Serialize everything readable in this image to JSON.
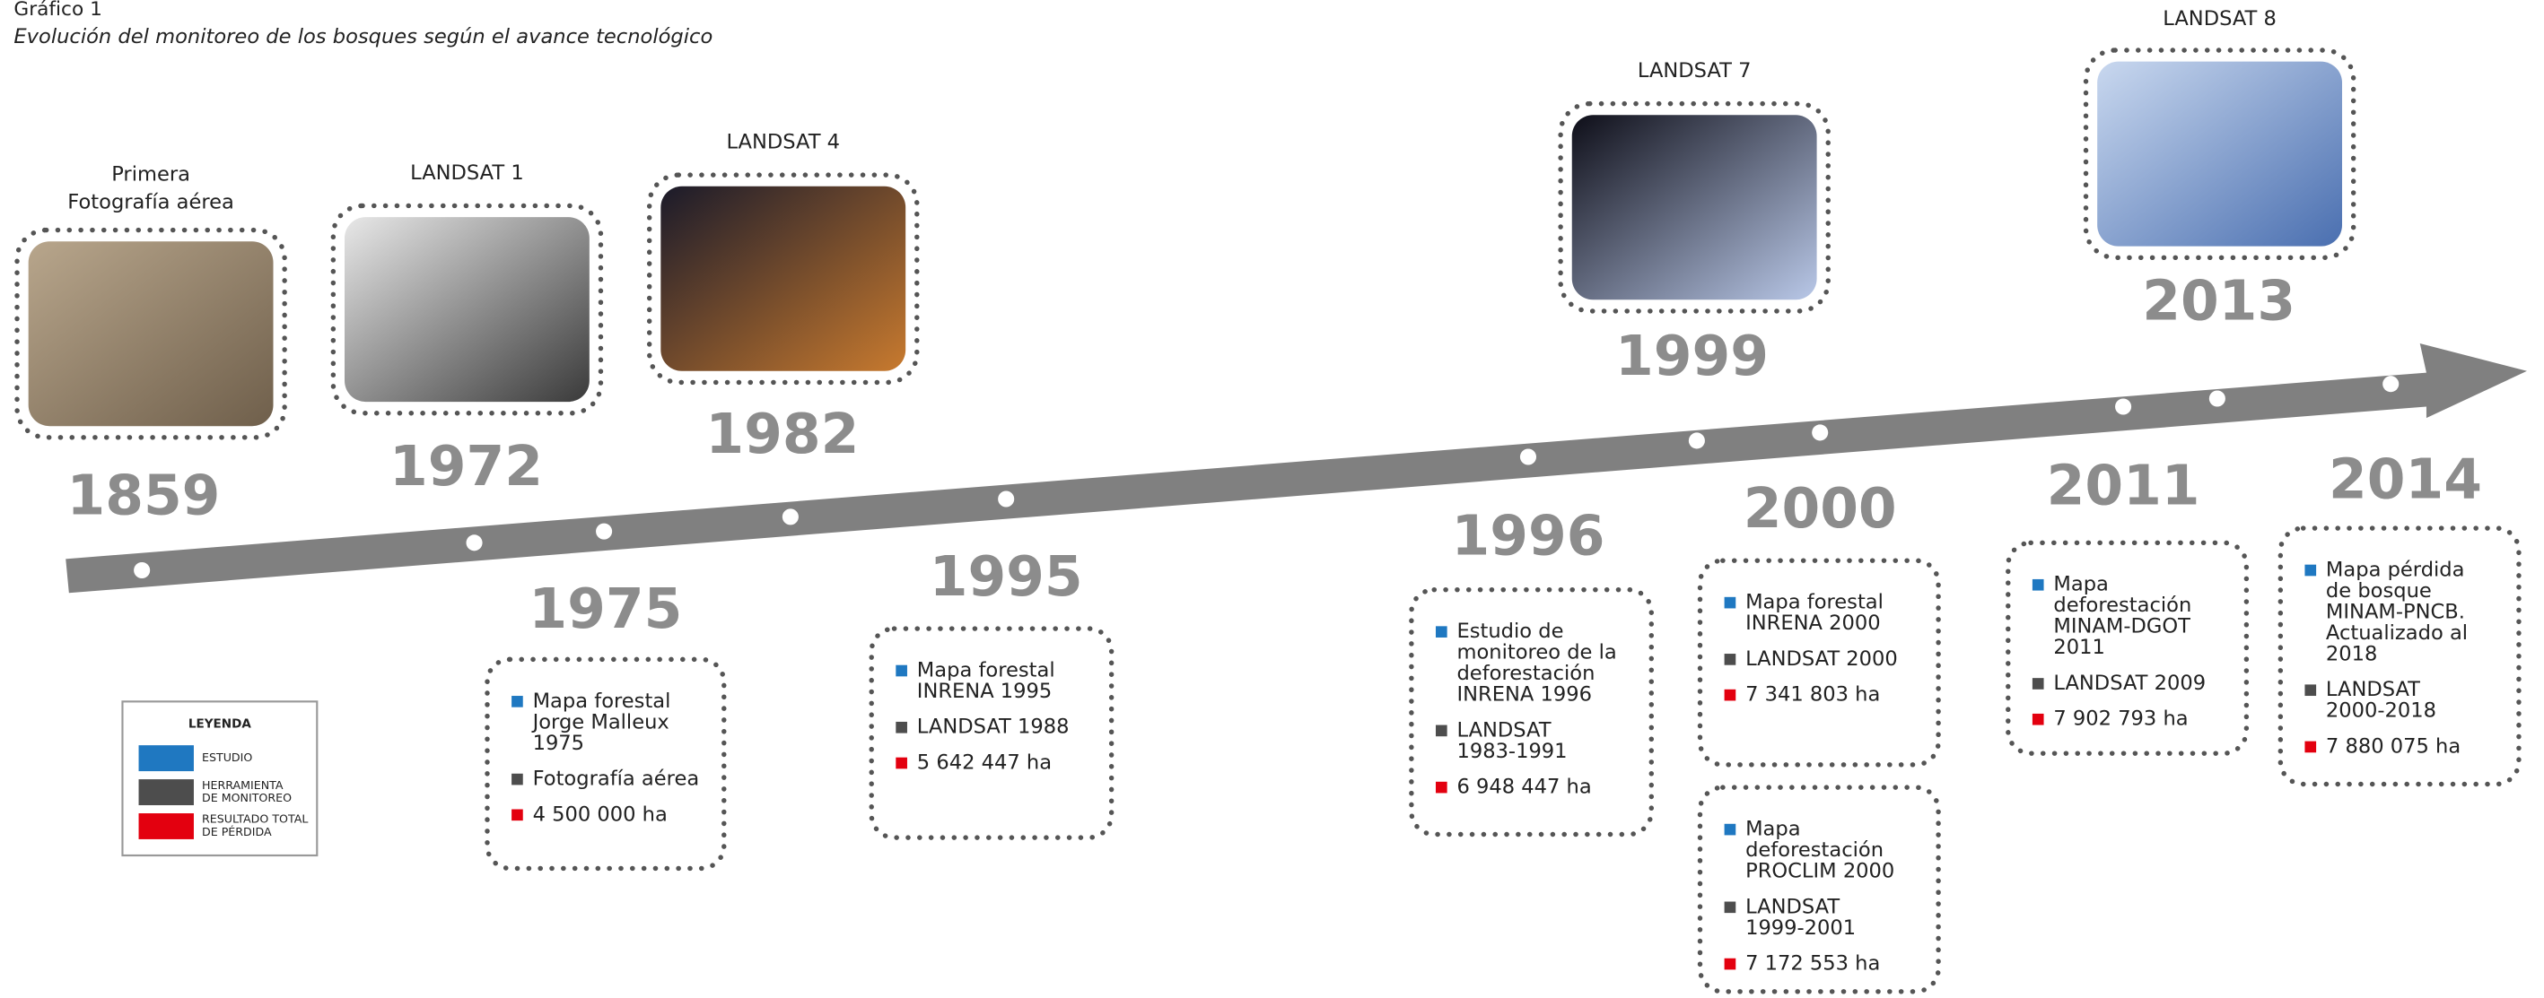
{
  "header": {
    "label": "Gráfico 1",
    "title": "Evolución del monitoreo de los bosques según el avance tecnológico"
  },
  "top_events": [
    {
      "year": "1859",
      "label_lines": [
        "Primera",
        "Fotografía aérea"
      ]
    },
    {
      "year": "1972",
      "label_lines": [
        "LANDSAT 1"
      ]
    },
    {
      "year": "1982",
      "label_lines": [
        "LANDSAT 4"
      ]
    },
    {
      "year": "1999",
      "label_lines": [
        "LANDSAT 7"
      ]
    },
    {
      "year": "2013",
      "label_lines": [
        "LANDSAT 8"
      ]
    }
  ],
  "bottom_events": [
    {
      "year": "1975",
      "boxes": [
        {
          "study_lines": [
            "Mapa forestal",
            "Jorge Malleux",
            "1975"
          ],
          "tool_lines": [
            "Fotografía aérea"
          ],
          "result": "4 500 000 ha"
        }
      ]
    },
    {
      "year": "1995",
      "boxes": [
        {
          "study_lines": [
            "Mapa forestal",
            "INRENA 1995"
          ],
          "tool_lines": [
            "LANDSAT 1988"
          ],
          "result": "5 642 447 ha"
        }
      ]
    },
    {
      "year": "1996",
      "boxes": [
        {
          "study_lines": [
            "Estudio de",
            "monitoreo de la",
            "deforestación",
            "INRENA 1996"
          ],
          "tool_lines": [
            "LANDSAT",
            "1983-1991"
          ],
          "result": "6 948 447 ha"
        }
      ]
    },
    {
      "year": "2000",
      "boxes": [
        {
          "study_lines": [
            "Mapa forestal",
            "INRENA 2000"
          ],
          "tool_lines": [
            "LANDSAT 2000"
          ],
          "result": "7 341 803 ha"
        },
        {
          "study_lines": [
            "Mapa",
            "deforestación",
            "PROCLIM 2000"
          ],
          "tool_lines": [
            "LANDSAT",
            "1999-2001"
          ],
          "result": "7 172 553 ha"
        }
      ]
    },
    {
      "year": "2011",
      "boxes": [
        {
          "study_lines": [
            "Mapa",
            "deforestación",
            "MINAM-DGOT",
            "2011"
          ],
          "tool_lines": [
            "LANDSAT 2009"
          ],
          "result": "7 902 793 ha"
        }
      ]
    },
    {
      "year": "2014",
      "boxes": [
        {
          "study_lines": [
            "Mapa pérdida",
            "de bosque",
            "MINAM-PNCB.",
            "Actualizado al",
            "2018"
          ],
          "tool_lines": [
            "LANDSAT",
            "2000-2018"
          ],
          "result": "7 880 075 ha"
        }
      ]
    }
  ],
  "legend": {
    "title": "LEYENDA",
    "items": [
      {
        "lines": [
          "ESTUDIO"
        ],
        "color": "#1f78c1"
      },
      {
        "lines": [
          "HERRAMIENTA",
          "DE MONITOREO"
        ],
        "color": "#4d4d4d"
      },
      {
        "lines": [
          "RESULTADO TOTAL",
          "DE PÉRDIDA"
        ],
        "color": "#e3000f"
      }
    ]
  }
}
